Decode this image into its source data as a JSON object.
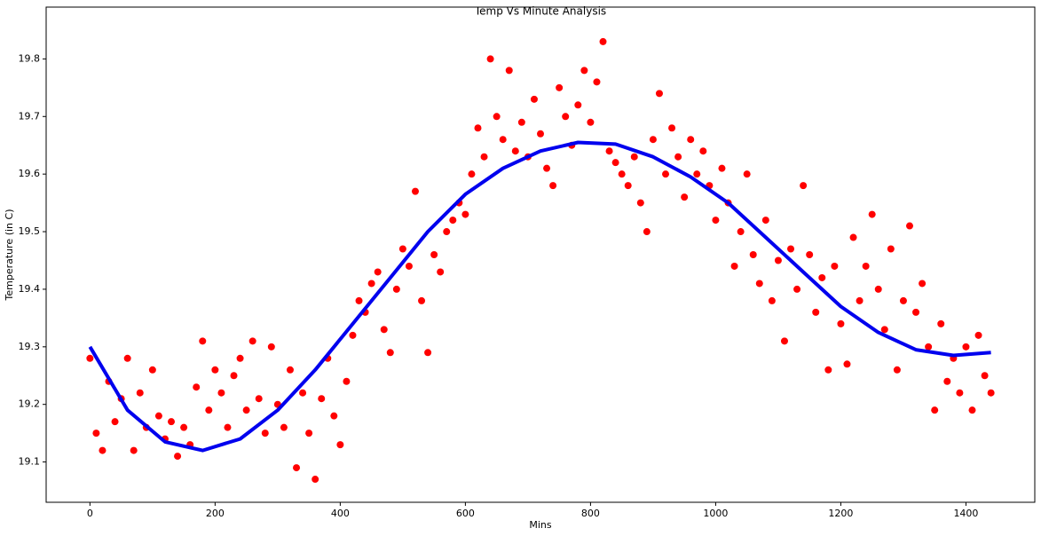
{
  "chart_data": {
    "type": "scatter",
    "title": "Temp Vs Minute Analysis",
    "x_label": "Mins",
    "y_label": "Temperature (in C)",
    "xlim": [
      -70,
      1510
    ],
    "ylim": [
      19.03,
      19.89
    ],
    "xticks": [
      0,
      200,
      400,
      600,
      800,
      1000,
      1200,
      1400
    ],
    "yticks": [
      19.1,
      19.2,
      19.3,
      19.4,
      19.5,
      19.6,
      19.7,
      19.8
    ],
    "series": [
      {
        "kind": "scatter",
        "color": "#ff0000",
        "x": [
          0,
          10,
          20,
          30,
          40,
          50,
          60,
          70,
          80,
          90,
          100,
          110,
          120,
          130,
          140,
          150,
          160,
          170,
          180,
          190,
          200,
          210,
          220,
          230,
          240,
          250,
          260,
          270,
          280,
          290,
          300,
          310,
          320,
          330,
          340,
          350,
          360,
          370,
          380,
          390,
          400,
          410,
          420,
          430,
          440,
          450,
          460,
          470,
          480,
          490,
          500,
          510,
          520,
          530,
          540,
          550,
          560,
          570,
          580,
          590,
          600,
          610,
          620,
          630,
          640,
          650,
          660,
          670,
          680,
          690,
          700,
          710,
          720,
          730,
          740,
          750,
          760,
          770,
          780,
          790,
          800,
          810,
          820,
          830,
          840,
          850,
          860,
          870,
          880,
          890,
          900,
          910,
          920,
          930,
          940,
          950,
          960,
          970,
          980,
          990,
          1000,
          1010,
          1020,
          1030,
          1040,
          1050,
          1060,
          1070,
          1080,
          1090,
          1100,
          1110,
          1120,
          1130,
          1140,
          1150,
          1160,
          1170,
          1180,
          1190,
          1200,
          1210,
          1220,
          1230,
          1240,
          1250,
          1260,
          1270,
          1280,
          1290,
          1300,
          1310,
          1320,
          1330,
          1340,
          1350,
          1360,
          1370,
          1380,
          1390,
          1400,
          1410,
          1420,
          1430,
          1440
        ],
        "values": [
          19.28,
          19.15,
          19.12,
          19.24,
          19.17,
          19.21,
          19.28,
          19.12,
          19.22,
          19.16,
          19.26,
          19.18,
          19.14,
          19.17,
          19.11,
          19.16,
          19.13,
          19.23,
          19.31,
          19.19,
          19.26,
          19.22,
          19.16,
          19.25,
          19.28,
          19.19,
          19.31,
          19.21,
          19.15,
          19.3,
          19.2,
          19.16,
          19.26,
          19.09,
          19.22,
          19.15,
          19.07,
          19.21,
          19.28,
          19.18,
          19.13,
          19.24,
          19.32,
          19.38,
          19.36,
          19.41,
          19.43,
          19.33,
          19.29,
          19.4,
          19.47,
          19.44,
          19.57,
          19.38,
          19.29,
          19.46,
          19.43,
          19.5,
          19.52,
          19.55,
          19.53,
          19.6,
          19.68,
          19.63,
          19.8,
          19.7,
          19.66,
          19.78,
          19.64,
          19.69,
          19.63,
          19.73,
          19.67,
          19.61,
          19.58,
          19.75,
          19.7,
          19.65,
          19.72,
          19.78,
          19.69,
          19.76,
          19.83,
          19.64,
          19.62,
          19.6,
          19.58,
          19.63,
          19.55,
          19.5,
          19.66,
          19.74,
          19.6,
          19.68,
          19.63,
          19.56,
          19.66,
          19.6,
          19.64,
          19.58,
          19.52,
          19.61,
          19.55,
          19.44,
          19.5,
          19.6,
          19.46,
          19.41,
          19.52,
          19.38,
          19.45,
          19.31,
          19.47,
          19.4,
          19.58,
          19.46,
          19.36,
          19.42,
          19.26,
          19.44,
          19.34,
          19.27,
          19.49,
          19.38,
          19.44,
          19.53,
          19.4,
          19.33,
          19.47,
          19.26,
          19.38,
          19.51,
          19.36,
          19.41,
          19.3,
          19.19,
          19.34,
          19.24,
          19.28,
          19.22,
          19.3,
          19.19,
          19.32,
          19.25,
          19.22
        ]
      },
      {
        "kind": "line",
        "color": "#0000ee",
        "x": [
          0,
          60,
          120,
          180,
          240,
          300,
          360,
          420,
          480,
          540,
          600,
          660,
          720,
          780,
          840,
          900,
          960,
          1020,
          1080,
          1140,
          1200,
          1260,
          1320,
          1380,
          1440
        ],
        "values": [
          19.3,
          19.19,
          19.135,
          19.12,
          19.14,
          19.19,
          19.26,
          19.34,
          19.42,
          19.5,
          19.565,
          19.61,
          19.64,
          19.655,
          19.652,
          19.63,
          19.595,
          19.55,
          19.49,
          19.43,
          19.37,
          19.325,
          19.295,
          19.285,
          19.29
        ]
      }
    ]
  }
}
